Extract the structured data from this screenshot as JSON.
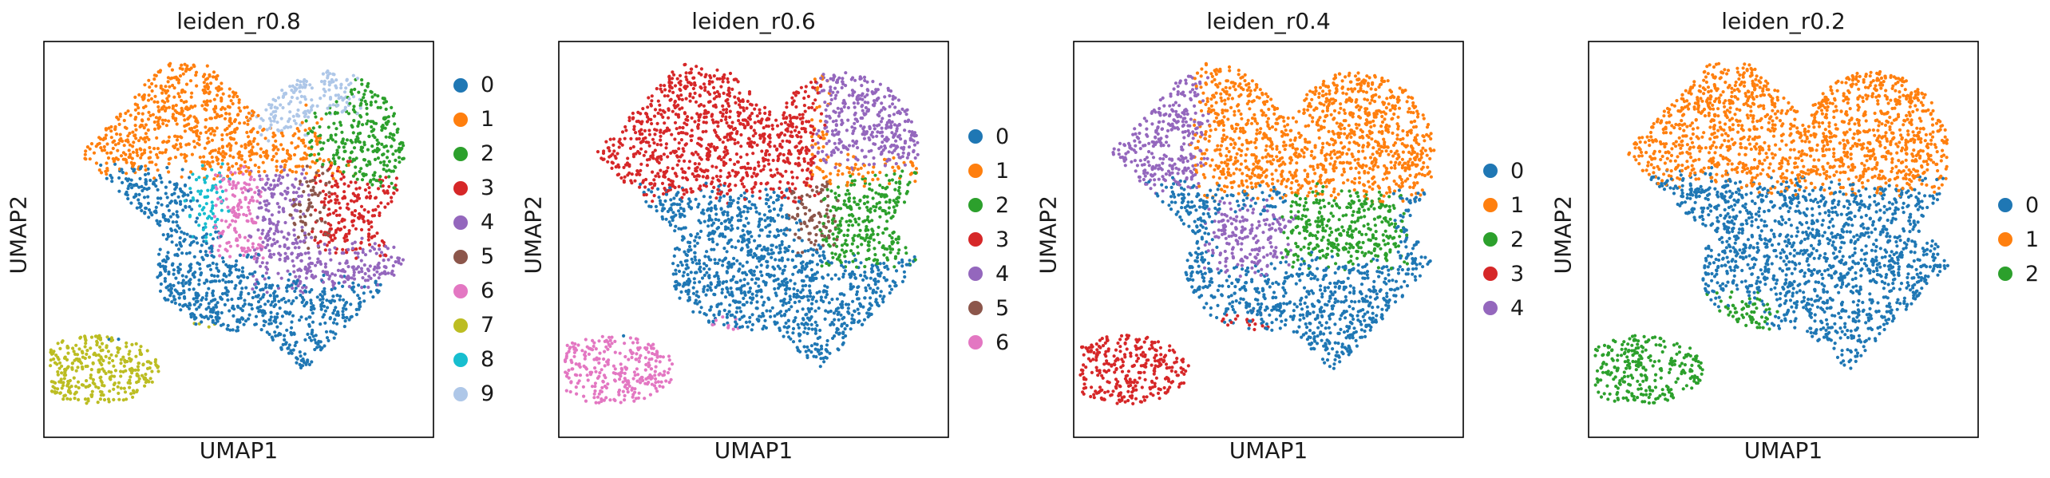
{
  "figure": {
    "xlabel": "UMAP1",
    "ylabel": "UMAP2"
  },
  "chart_data": [
    {
      "type": "scatter",
      "title": "leiden_r0.8",
      "xlabel": "UMAP1",
      "ylabel": "UMAP2",
      "legend_position": "right",
      "grid": false,
      "categories": [
        "0",
        "1",
        "2",
        "3",
        "4",
        "5",
        "6",
        "7",
        "8",
        "9"
      ],
      "colors": [
        "#1f77b4",
        "#ff7f0e",
        "#2ca02c",
        "#d62728",
        "#9467bd",
        "#8c564b",
        "#e377c2",
        "#bcbd22",
        "#17becf",
        "#aec7e8"
      ]
    },
    {
      "type": "scatter",
      "title": "leiden_r0.6",
      "xlabel": "UMAP1",
      "ylabel": "UMAP2",
      "legend_position": "right",
      "grid": false,
      "categories": [
        "0",
        "1",
        "2",
        "3",
        "4",
        "5",
        "6"
      ],
      "colors": [
        "#1f77b4",
        "#ff7f0e",
        "#2ca02c",
        "#d62728",
        "#9467bd",
        "#8c564b",
        "#e377c2"
      ]
    },
    {
      "type": "scatter",
      "title": "leiden_r0.4",
      "xlabel": "UMAP1",
      "ylabel": "UMAP2",
      "legend_position": "right",
      "grid": false,
      "categories": [
        "0",
        "1",
        "2",
        "3",
        "4"
      ],
      "colors": [
        "#1f77b4",
        "#ff7f0e",
        "#2ca02c",
        "#d62728",
        "#9467bd"
      ]
    },
    {
      "type": "scatter",
      "title": "leiden_r0.2",
      "xlabel": "UMAP1",
      "ylabel": "UMAP2",
      "legend_position": "right",
      "grid": false,
      "categories": [
        "0",
        "1",
        "2"
      ],
      "colors": [
        "#1f77b4",
        "#ff7f0e",
        "#2ca02c"
      ]
    }
  ]
}
